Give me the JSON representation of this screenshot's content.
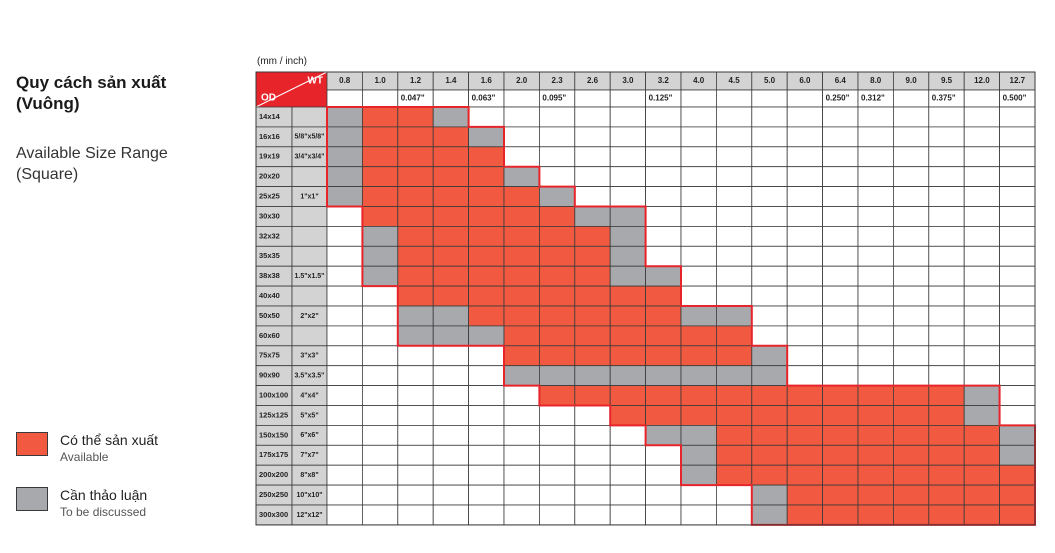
{
  "heading": {
    "title_line1": "Quy cách sản xuất",
    "title_line2": "(Vuông)",
    "subtitle_line1": "Available Size Range",
    "subtitle_line2": "(Square)"
  },
  "units_label": "(mm / inch)",
  "corner": {
    "wt_label": "WT",
    "od_label": "OD"
  },
  "colors": {
    "available": "#F15A40",
    "discuss": "#A7A9AC",
    "highlight_border": "#E8242B",
    "corner_bg": "#E8242B",
    "od_col_bg": "#D3D3D3",
    "grid": "#3a3a3a"
  },
  "legend": [
    {
      "key": "available",
      "label": "Có thể sản xuất",
      "sublabel": "Available"
    },
    {
      "key": "discuss",
      "label": "Cần thảo luận",
      "sublabel": "To be discussed"
    }
  ],
  "wt_columns": [
    {
      "mm": "0.8",
      "inch": ""
    },
    {
      "mm": "1.0",
      "inch": ""
    },
    {
      "mm": "1.2",
      "inch": "0.047\""
    },
    {
      "mm": "1.4",
      "inch": ""
    },
    {
      "mm": "1.6",
      "inch": "0.063\""
    },
    {
      "mm": "2.0",
      "inch": ""
    },
    {
      "mm": "2.3",
      "inch": "0.095\""
    },
    {
      "mm": "2.6",
      "inch": ""
    },
    {
      "mm": "3.0",
      "inch": ""
    },
    {
      "mm": "3.2",
      "inch": "0.125\""
    },
    {
      "mm": "4.0",
      "inch": ""
    },
    {
      "mm": "4.5",
      "inch": ""
    },
    {
      "mm": "5.0",
      "inch": ""
    },
    {
      "mm": "6.0",
      "inch": ""
    },
    {
      "mm": "6.4",
      "inch": "0.250\""
    },
    {
      "mm": "8.0",
      "inch": "0.312\""
    },
    {
      "mm": "9.0",
      "inch": ""
    },
    {
      "mm": "9.5",
      "inch": "0.375\""
    },
    {
      "mm": "12.0",
      "inch": ""
    },
    {
      "mm": "12.7",
      "inch": "0.500\""
    }
  ],
  "od_rows": [
    {
      "mm": "14x14",
      "inch": "",
      "cells": "GAAG................"
    },
    {
      "mm": "16x16",
      "inch": "5/8\"x5/8\"",
      "cells": "GAAAG..............."
    },
    {
      "mm": "19x19",
      "inch": "3/4\"x3/4\"",
      "cells": "GAAAA..............."
    },
    {
      "mm": "20x20",
      "inch": "",
      "cells": "GAAAAG.............."
    },
    {
      "mm": "25x25",
      "inch": "1\"x1\"",
      "cells": "GAAAAAG............."
    },
    {
      "mm": "30x30",
      "inch": "",
      "cells": ".AAAAAAGG..........."
    },
    {
      "mm": "32x32",
      "inch": "",
      "cells": ".GAAAAAAG..........."
    },
    {
      "mm": "35x35",
      "inch": "",
      "cells": ".GAAAAAAG..........."
    },
    {
      "mm": "38x38",
      "inch": "1.5\"x1.5\"",
      "cells": ".GAAAAAAGG.........."
    },
    {
      "mm": "40x40",
      "inch": "",
      "cells": "..AAAAAAAA.........."
    },
    {
      "mm": "50x50",
      "inch": "2\"x2\"",
      "cells": "..GGAAAAAAGG........"
    },
    {
      "mm": "60x60",
      "inch": "",
      "cells": "..GGGAAAAAAA........"
    },
    {
      "mm": "75x75",
      "inch": "3\"x3\"",
      "cells": ".....AAAAAAAG......."
    },
    {
      "mm": "90x90",
      "inch": "3.5\"x3.5\"",
      "cells": ".....GGGGGGGG......."
    },
    {
      "mm": "100x100",
      "inch": "4\"x4\"",
      "cells": "......AAAAAAAAAAAAG."
    },
    {
      "mm": "125x125",
      "inch": "5\"x5\"",
      "cells": "........AAAAAAAAAAG."
    },
    {
      "mm": "150x150",
      "inch": "6\"x6\"",
      "cells": ".........GGAAAAAAAAG"
    },
    {
      "mm": "175x175",
      "inch": "7\"x7\"",
      "cells": "..........GAAAAAAAAG"
    },
    {
      "mm": "200x200",
      "inch": "8\"x8\"",
      "cells": "..........GAAAAAAAAA"
    },
    {
      "mm": "250x250",
      "inch": "10\"x10\"",
      "cells": "............GAAAAAAA"
    },
    {
      "mm": "300x300",
      "inch": "12\"x12\"",
      "cells": "............GAAAAAAA"
    }
  ]
}
